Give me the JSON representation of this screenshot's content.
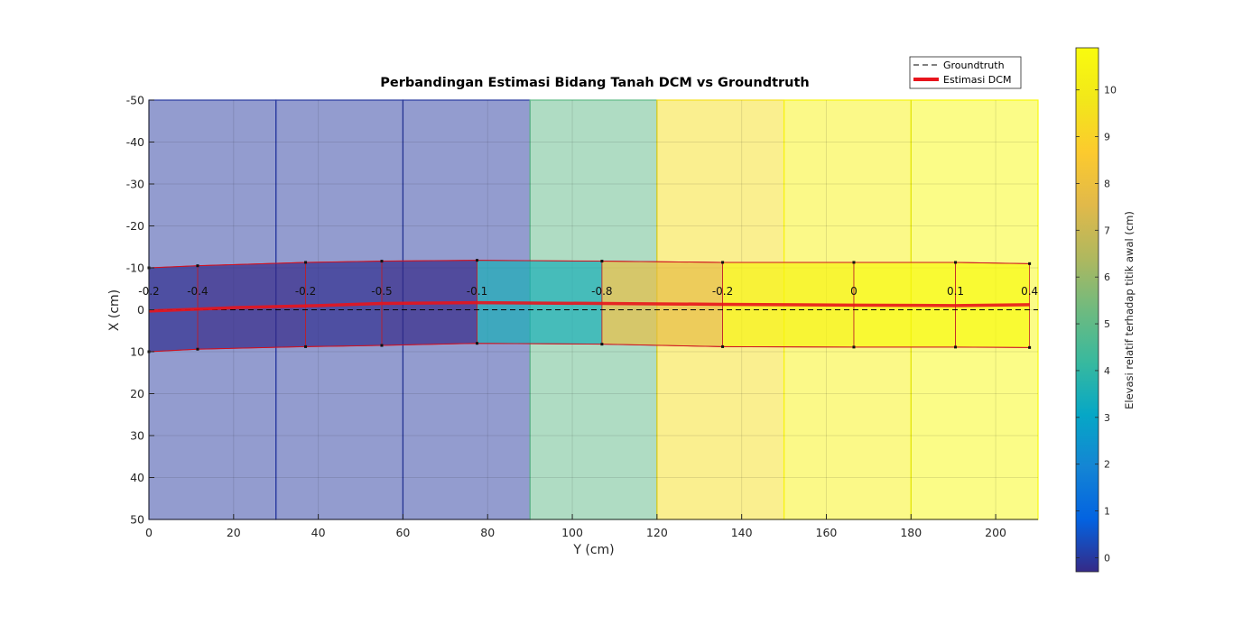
{
  "chart_data": {
    "type": "heatmap",
    "title": "Perbandingan Estimasi Bidang Tanah DCM vs Groundtruth",
    "xlabel": "Y (cm)",
    "ylabel": "X (cm)",
    "xlim": [
      0,
      210
    ],
    "ylim": [
      -50,
      50
    ],
    "y_reversed": true,
    "xticks": [
      0,
      20,
      40,
      60,
      80,
      100,
      120,
      140,
      160,
      180,
      200
    ],
    "yticks": [
      -50,
      -40,
      -30,
      -20,
      -10,
      0,
      10,
      20,
      30,
      40,
      50
    ],
    "grid": true,
    "legend": {
      "position": "top-right",
      "entries": [
        {
          "label": "Groundtruth",
          "style": "dashed",
          "color": "#000000"
        },
        {
          "label": "Estimasi DCM",
          "style": "solid",
          "color": "#e8141c"
        }
      ]
    },
    "groundtruth_cells": [
      {
        "y0": 0,
        "y1": 30,
        "value": 0
      },
      {
        "y0": 30,
        "y1": 60,
        "value": 0
      },
      {
        "y0": 60,
        "y1": 90,
        "value": 0
      },
      {
        "y0": 90,
        "y1": 120,
        "value": 5
      },
      {
        "y0": 120,
        "y1": 150,
        "value": 9.5
      },
      {
        "y0": 150,
        "y1": 180,
        "value": 10.5
      },
      {
        "y0": 180,
        "y1": 210,
        "value": 10.8
      }
    ],
    "estimation_segments": [
      {
        "y0": 0,
        "y1": 11.5,
        "value": -0.2,
        "label": "-0.2"
      },
      {
        "y0": 11.5,
        "y1": 37,
        "value": -0.4,
        "label": "-0.4"
      },
      {
        "y0": 37,
        "y1": 55,
        "value": -0.2,
        "label": "-0.2"
      },
      {
        "y0": 55,
        "y1": 77.5,
        "value": -0.5,
        "label": "-0.5"
      },
      {
        "y0": 77.5,
        "y1": 107,
        "value": 3.5,
        "label": "-0.1"
      },
      {
        "y0": 107,
        "y1": 135.5,
        "value": 7.8,
        "label": "-0.8"
      },
      {
        "y0": 135.5,
        "y1": 166.5,
        "value": 10.5,
        "label": "-0.2"
      },
      {
        "y0": 166.5,
        "y1": 190.5,
        "value": 10.8,
        "label": "0"
      },
      {
        "y0": 190.5,
        "y1": 208,
        "value": 10.8,
        "label": "0.1"
      }
    ],
    "end_label": "0.4",
    "estimation_outline": {
      "top": [
        [
          0,
          -10
        ],
        [
          11.5,
          -10.5
        ],
        [
          37,
          -11.3
        ],
        [
          55,
          -11.6
        ],
        [
          77.5,
          -11.8
        ],
        [
          107,
          -11.6
        ],
        [
          135.5,
          -11.3
        ],
        [
          166.5,
          -11.3
        ],
        [
          190.5,
          -11.3
        ],
        [
          208,
          -11
        ]
      ],
      "bottom": [
        [
          0,
          10
        ],
        [
          11.5,
          9.4
        ],
        [
          37,
          8.8
        ],
        [
          55,
          8.5
        ],
        [
          77.5,
          8
        ],
        [
          107,
          8.2
        ],
        [
          135.5,
          8.8
        ],
        [
          166.5,
          8.9
        ],
        [
          190.5,
          8.9
        ],
        [
          208,
          9
        ]
      ]
    },
    "estimation_line": [
      [
        0,
        0.3
      ],
      [
        20,
        -0.5
      ],
      [
        40,
        -1
      ],
      [
        55,
        -1.5
      ],
      [
        77.5,
        -1.7
      ],
      [
        107,
        -1.5
      ],
      [
        135.5,
        -1.3
      ],
      [
        166.5,
        -1.1
      ],
      [
        190.5,
        -1
      ],
      [
        208,
        -1.2
      ]
    ],
    "groundtruth_line": [
      [
        0,
        0
      ],
      [
        210,
        0
      ]
    ],
    "colorbar": {
      "label": "Elevasi relatif terhadap titik awal (cm)",
      "range": [
        -0.3,
        10.9
      ],
      "ticks": [
        0,
        1,
        2,
        3,
        4,
        5,
        6,
        7,
        8,
        9,
        10
      ]
    }
  }
}
